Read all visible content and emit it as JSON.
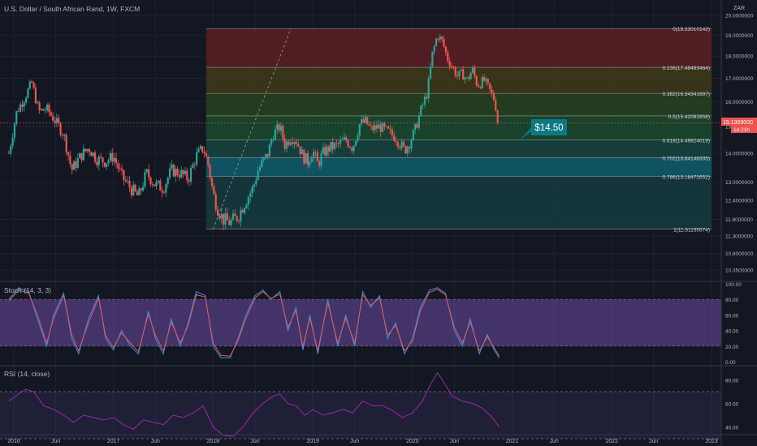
{
  "header": {
    "title": "U.S. Dollar / South African Rand, 1W, FXCM",
    "currency": "ZAR"
  },
  "colors": {
    "background": "#131722",
    "up_candle": "#26a69a",
    "down_candle": "#ef5350",
    "stoch_k": "#2196f3",
    "stoch_d": "#ef5350",
    "rsi_line": "#9c27b0",
    "indicator_band": "#7e57c2",
    "callout": "#0b7a84"
  },
  "chart_data": {
    "type": "candlestick",
    "symbol": "USDZAR",
    "timeframe": "1W",
    "source": "FXCM",
    "x_axis_labels": [
      "2016",
      "Jun",
      "2017",
      "Jun",
      "2018",
      "Jun",
      "2019",
      "Jun",
      "2020",
      "Jun",
      "2021",
      "Jun",
      "2022",
      "Jun",
      "2023"
    ],
    "x_axis_label_dates": [
      2016.0,
      2016.42,
      2017.0,
      2017.42,
      2018.0,
      2018.42,
      2019.0,
      2019.42,
      2020.0,
      2020.42,
      2021.0,
      2021.42,
      2022.0,
      2022.42,
      2023.0
    ],
    "price_axis_ticks": [
      "20.0000000",
      "19.0000000",
      "18.0000000",
      "17.0000000",
      "16.0000000",
      "15.0000000",
      "14.0000000",
      "13.0000000",
      "12.4000000",
      "11.8000000",
      "11.3000000",
      "10.8000000",
      "10.3500000"
    ],
    "price_axis_values": [
      20.0,
      19.0,
      18.0,
      17.0,
      16.0,
      15.0,
      14.0,
      13.0,
      12.4,
      11.8,
      11.3,
      10.8,
      10.35
    ],
    "last_price_label": "15.1369000",
    "countdown_label": "1d 21h",
    "last_price": 15.1369,
    "price_path": [
      [
        2015.95,
        14.0
      ],
      [
        2016.03,
        15.6
      ],
      [
        2016.1,
        16.1
      ],
      [
        2016.18,
        16.8
      ],
      [
        2016.25,
        15.6
      ],
      [
        2016.33,
        15.7
      ],
      [
        2016.42,
        15.2
      ],
      [
        2016.5,
        14.7
      ],
      [
        2016.58,
        13.4
      ],
      [
        2016.67,
        13.9
      ],
      [
        2016.75,
        14.2
      ],
      [
        2016.83,
        13.8
      ],
      [
        2016.92,
        13.7
      ],
      [
        2017.0,
        13.9
      ],
      [
        2017.08,
        13.2
      ],
      [
        2017.17,
        12.8
      ],
      [
        2017.25,
        12.5
      ],
      [
        2017.33,
        13.3
      ],
      [
        2017.42,
        12.9
      ],
      [
        2017.5,
        12.8
      ],
      [
        2017.58,
        13.4
      ],
      [
        2017.67,
        13.3
      ],
      [
        2017.75,
        13.1
      ],
      [
        2017.83,
        13.9
      ],
      [
        2017.9,
        14.2
      ],
      [
        2017.95,
        13.6
      ],
      [
        2018.0,
        12.6
      ],
      [
        2018.05,
        12.1
      ],
      [
        2018.1,
        11.8
      ],
      [
        2018.17,
        11.7
      ],
      [
        2018.25,
        11.9
      ],
      [
        2018.33,
        12.4
      ],
      [
        2018.4,
        12.8
      ],
      [
        2018.45,
        13.4
      ],
      [
        2018.5,
        13.7
      ],
      [
        2018.55,
        14.0
      ],
      [
        2018.6,
        14.7
      ],
      [
        2018.67,
        15.0
      ],
      [
        2018.72,
        14.3
      ],
      [
        2018.78,
        14.6
      ],
      [
        2018.83,
        14.5
      ],
      [
        2018.9,
        13.9
      ],
      [
        2018.95,
        13.7
      ],
      [
        2019.0,
        14.1
      ],
      [
        2019.05,
        13.6
      ],
      [
        2019.1,
        14.0
      ],
      [
        2019.17,
        14.2
      ],
      [
        2019.25,
        14.3
      ],
      [
        2019.33,
        14.5
      ],
      [
        2019.4,
        14.2
      ],
      [
        2019.47,
        15.1
      ],
      [
        2019.53,
        15.2
      ],
      [
        2019.58,
        14.9
      ],
      [
        2019.67,
        15.0
      ],
      [
        2019.75,
        14.8
      ],
      [
        2019.83,
        14.6
      ],
      [
        2019.92,
        14.1
      ],
      [
        2019.97,
        14.4
      ],
      [
        2020.02,
        14.8
      ],
      [
        2020.08,
        15.6
      ],
      [
        2020.15,
        16.4
      ],
      [
        2020.2,
        18.1
      ],
      [
        2020.25,
        19.0
      ],
      [
        2020.3,
        18.7
      ],
      [
        2020.35,
        17.9
      ],
      [
        2020.4,
        17.5
      ],
      [
        2020.45,
        17.1
      ],
      [
        2020.5,
        17.2
      ],
      [
        2020.55,
        16.9
      ],
      [
        2020.6,
        17.4
      ],
      [
        2020.65,
        16.7
      ],
      [
        2020.72,
        16.9
      ],
      [
        2020.77,
        16.5
      ],
      [
        2020.82,
        16.1
      ],
      [
        2020.87,
        15.14
      ]
    ],
    "fibonacci": {
      "start_date": 2017.93,
      "end_date": 2023.0,
      "levels": [
        {
          "ratio": "0",
          "price": 19.33010142,
          "label": "0(19.33010142)",
          "fill": "#5b1f22"
        },
        {
          "ratio": "0.236",
          "price": 17.48493464,
          "label": "0.236(17.48493464)",
          "fill": "#3f3a18"
        },
        {
          "ratio": "0.382",
          "price": 16.34341697,
          "label": "0.382(16.34341697)",
          "fill": "#27431f"
        },
        {
          "ratio": "0.5",
          "price": 15.42082858,
          "label": "0.5(15.42082858)",
          "fill": "#1a4a2d"
        },
        {
          "ratio": "0.618",
          "price": 14.49824019,
          "label": "0.618(14.49824019)",
          "fill": "#164441"
        },
        {
          "ratio": "0.702",
          "price": 13.84148335,
          "label": "0.702(13.84148335)",
          "fill": "#0f5d6c"
        },
        {
          "ratio": "0.786",
          "price": 13.18472652,
          "label": "0.786(13.18472652)",
          "fill": "#153b3d"
        },
        {
          "ratio": "1",
          "price": 11.51155574,
          "label": "1(11.51155574)",
          "fill": "#1f3a2e"
        }
      ]
    },
    "callout": {
      "label": "$14.50",
      "price": 14.5
    },
    "indicators": [
      {
        "name": "Stoch (14, 3, 3)",
        "range": [
          0,
          100
        ],
        "ticks": [
          "100.00",
          "80.00",
          "60.00",
          "40.00",
          "20.00",
          "0.00"
        ],
        "tick_values": [
          100,
          80,
          60,
          40,
          20,
          0
        ],
        "bands": [
          20,
          80
        ],
        "k_path": [
          [
            2015.95,
            80
          ],
          [
            2016.05,
            95
          ],
          [
            2016.15,
            90
          ],
          [
            2016.25,
            50
          ],
          [
            2016.33,
            20
          ],
          [
            2016.4,
            60
          ],
          [
            2016.5,
            88
          ],
          [
            2016.58,
            30
          ],
          [
            2016.65,
            10
          ],
          [
            2016.75,
            55
          ],
          [
            2016.85,
            85
          ],
          [
            2016.92,
            30
          ],
          [
            2017.0,
            15
          ],
          [
            2017.08,
            40
          ],
          [
            2017.17,
            20
          ],
          [
            2017.25,
            10
          ],
          [
            2017.35,
            65
          ],
          [
            2017.42,
            30
          ],
          [
            2017.5,
            10
          ],
          [
            2017.58,
            55
          ],
          [
            2017.67,
            20
          ],
          [
            2017.75,
            50
          ],
          [
            2017.83,
            90
          ],
          [
            2017.92,
            85
          ],
          [
            2018.0,
            20
          ],
          [
            2018.08,
            5
          ],
          [
            2018.17,
            5
          ],
          [
            2018.25,
            30
          ],
          [
            2018.33,
            60
          ],
          [
            2018.42,
            85
          ],
          [
            2018.5,
            92
          ],
          [
            2018.58,
            80
          ],
          [
            2018.67,
            90
          ],
          [
            2018.75,
            40
          ],
          [
            2018.83,
            70
          ],
          [
            2018.9,
            15
          ],
          [
            2018.97,
            60
          ],
          [
            2019.05,
            10
          ],
          [
            2019.15,
            80
          ],
          [
            2019.25,
            20
          ],
          [
            2019.33,
            60
          ],
          [
            2019.42,
            20
          ],
          [
            2019.5,
            90
          ],
          [
            2019.58,
            70
          ],
          [
            2019.67,
            85
          ],
          [
            2019.75,
            30
          ],
          [
            2019.83,
            50
          ],
          [
            2019.92,
            10
          ],
          [
            2020.0,
            30
          ],
          [
            2020.08,
            70
          ],
          [
            2020.17,
            92
          ],
          [
            2020.25,
            95
          ],
          [
            2020.33,
            88
          ],
          [
            2020.42,
            40
          ],
          [
            2020.5,
            20
          ],
          [
            2020.58,
            55
          ],
          [
            2020.67,
            10
          ],
          [
            2020.75,
            35
          ],
          [
            2020.82,
            15
          ],
          [
            2020.87,
            5
          ]
        ],
        "d_path": [
          [
            2015.95,
            78
          ],
          [
            2016.05,
            92
          ],
          [
            2016.15,
            88
          ],
          [
            2016.25,
            55
          ],
          [
            2016.33,
            24
          ],
          [
            2016.4,
            56
          ],
          [
            2016.5,
            85
          ],
          [
            2016.58,
            35
          ],
          [
            2016.65,
            14
          ],
          [
            2016.75,
            50
          ],
          [
            2016.85,
            82
          ],
          [
            2016.92,
            34
          ],
          [
            2017.0,
            18
          ],
          [
            2017.08,
            37
          ],
          [
            2017.17,
            24
          ],
          [
            2017.25,
            13
          ],
          [
            2017.35,
            61
          ],
          [
            2017.42,
            34
          ],
          [
            2017.5,
            14
          ],
          [
            2017.58,
            51
          ],
          [
            2017.67,
            24
          ],
          [
            2017.75,
            47
          ],
          [
            2017.83,
            86
          ],
          [
            2017.92,
            83
          ],
          [
            2018.0,
            24
          ],
          [
            2018.08,
            8
          ],
          [
            2018.17,
            7
          ],
          [
            2018.25,
            27
          ],
          [
            2018.33,
            56
          ],
          [
            2018.42,
            82
          ],
          [
            2018.5,
            90
          ],
          [
            2018.58,
            81
          ],
          [
            2018.67,
            87
          ],
          [
            2018.75,
            44
          ],
          [
            2018.83,
            66
          ],
          [
            2018.9,
            19
          ],
          [
            2018.97,
            56
          ],
          [
            2019.05,
            14
          ],
          [
            2019.15,
            76
          ],
          [
            2019.25,
            24
          ],
          [
            2019.33,
            56
          ],
          [
            2019.42,
            24
          ],
          [
            2019.5,
            86
          ],
          [
            2019.58,
            72
          ],
          [
            2019.67,
            82
          ],
          [
            2019.75,
            34
          ],
          [
            2019.83,
            47
          ],
          [
            2019.92,
            14
          ],
          [
            2020.0,
            27
          ],
          [
            2020.08,
            66
          ],
          [
            2020.17,
            89
          ],
          [
            2020.25,
            93
          ],
          [
            2020.33,
            86
          ],
          [
            2020.42,
            44
          ],
          [
            2020.5,
            24
          ],
          [
            2020.58,
            51
          ],
          [
            2020.67,
            14
          ],
          [
            2020.75,
            32
          ],
          [
            2020.82,
            18
          ],
          [
            2020.87,
            7
          ]
        ]
      },
      {
        "name": "RSI (14, close)",
        "visible_range": [
          30,
          90
        ],
        "ticks": [
          "80.00",
          "60.00",
          "40.00"
        ],
        "tick_values": [
          80,
          60,
          40
        ],
        "bands": [
          30,
          70
        ],
        "path": [
          [
            2015.95,
            62
          ],
          [
            2016.05,
            68
          ],
          [
            2016.12,
            72
          ],
          [
            2016.2,
            70
          ],
          [
            2016.3,
            58
          ],
          [
            2016.4,
            55
          ],
          [
            2016.5,
            50
          ],
          [
            2016.6,
            44
          ],
          [
            2016.7,
            50
          ],
          [
            2016.8,
            48
          ],
          [
            2016.9,
            46
          ],
          [
            2017.0,
            48
          ],
          [
            2017.1,
            42
          ],
          [
            2017.2,
            38
          ],
          [
            2017.3,
            46
          ],
          [
            2017.4,
            44
          ],
          [
            2017.5,
            42
          ],
          [
            2017.6,
            50
          ],
          [
            2017.7,
            48
          ],
          [
            2017.8,
            52
          ],
          [
            2017.9,
            58
          ],
          [
            2018.0,
            40
          ],
          [
            2018.1,
            33
          ],
          [
            2018.2,
            32
          ],
          [
            2018.3,
            40
          ],
          [
            2018.4,
            52
          ],
          [
            2018.5,
            60
          ],
          [
            2018.6,
            66
          ],
          [
            2018.67,
            68
          ],
          [
            2018.75,
            60
          ],
          [
            2018.83,
            58
          ],
          [
            2018.92,
            50
          ],
          [
            2019.0,
            55
          ],
          [
            2019.1,
            50
          ],
          [
            2019.2,
            52
          ],
          [
            2019.3,
            55
          ],
          [
            2019.4,
            52
          ],
          [
            2019.5,
            62
          ],
          [
            2019.6,
            58
          ],
          [
            2019.7,
            58
          ],
          [
            2019.8,
            54
          ],
          [
            2019.9,
            48
          ],
          [
            2020.0,
            52
          ],
          [
            2020.1,
            62
          ],
          [
            2020.18,
            76
          ],
          [
            2020.25,
            86
          ],
          [
            2020.3,
            80
          ],
          [
            2020.4,
            66
          ],
          [
            2020.5,
            62
          ],
          [
            2020.6,
            60
          ],
          [
            2020.7,
            56
          ],
          [
            2020.78,
            50
          ],
          [
            2020.87,
            40
          ]
        ]
      }
    ]
  }
}
